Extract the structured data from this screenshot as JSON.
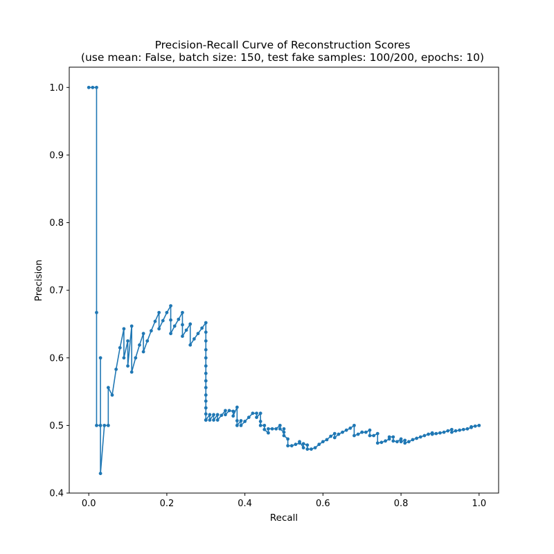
{
  "chart_data": {
    "type": "line",
    "title": "Precision-Recall Curve of Reconstruction Scores",
    "subtitle": "(use mean: False, batch size: 150, test fake samples: 100/200, epochs: 10)",
    "xlabel": "Recall",
    "ylabel": "Precision",
    "xlim": [
      -0.05,
      1.05
    ],
    "ylim": [
      0.4,
      1.03
    ],
    "xticks": [
      0.0,
      0.2,
      0.4,
      0.6,
      0.8,
      1.0
    ],
    "xtick_labels": [
      "0.0",
      "0.2",
      "0.4",
      "0.6",
      "0.8",
      "1.0"
    ],
    "yticks": [
      0.4,
      0.5,
      0.6,
      0.7,
      0.8,
      0.9,
      1.0
    ],
    "ytick_labels": [
      "0.4",
      "0.5",
      "0.6",
      "0.7",
      "0.8",
      "0.9",
      "1.0"
    ],
    "grid": false,
    "series_color": "#1f77b4",
    "marker": "circle",
    "series": [
      {
        "x": [
          0.0,
          0.01,
          0.02,
          0.02,
          0.02,
          0.03,
          0.03,
          0.03,
          0.04,
          0.05,
          0.05,
          0.06,
          0.07,
          0.08,
          0.09,
          0.09,
          0.1,
          0.1,
          0.11,
          0.11,
          0.12,
          0.13,
          0.14,
          0.14,
          0.15,
          0.16,
          0.17,
          0.18,
          0.18,
          0.19,
          0.2,
          0.21,
          0.21,
          0.21,
          0.22,
          0.23,
          0.24,
          0.24,
          0.24,
          0.25,
          0.26,
          0.26,
          0.27,
          0.28,
          0.29,
          0.3,
          0.3,
          0.3,
          0.3,
          0.3,
          0.3,
          0.3,
          0.3,
          0.3,
          0.3,
          0.3,
          0.3,
          0.3,
          0.3,
          0.3,
          0.3,
          0.31,
          0.31,
          0.32,
          0.32,
          0.33,
          0.33,
          0.34,
          0.35,
          0.35,
          0.36,
          0.37,
          0.37,
          0.38,
          0.38,
          0.38,
          0.39,
          0.39,
          0.4,
          0.41,
          0.42,
          0.43,
          0.43,
          0.44,
          0.44,
          0.44,
          0.45,
          0.45,
          0.46,
          0.46,
          0.47,
          0.48,
          0.49,
          0.49,
          0.5,
          0.5,
          0.5,
          0.51,
          0.51,
          0.52,
          0.53,
          0.54,
          0.54,
          0.55,
          0.55,
          0.56,
          0.56,
          0.57,
          0.58,
          0.59,
          0.6,
          0.61,
          0.62,
          0.63,
          0.63,
          0.64,
          0.65,
          0.66,
          0.67,
          0.68,
          0.68,
          0.69,
          0.7,
          0.7,
          0.71,
          0.72,
          0.72,
          0.73,
          0.74,
          0.74,
          0.75,
          0.76,
          0.77,
          0.77,
          0.78,
          0.78,
          0.79,
          0.8,
          0.8,
          0.81,
          0.81,
          0.82,
          0.83,
          0.84,
          0.85,
          0.86,
          0.87,
          0.88,
          0.88,
          0.89,
          0.9,
          0.91,
          0.92,
          0.93,
          0.93,
          0.94,
          0.95,
          0.96,
          0.97,
          0.98,
          0.98,
          0.99,
          1.0
        ],
        "y": [
          1.0,
          1.0,
          1.0,
          0.667,
          0.5,
          0.5,
          0.6,
          0.429,
          0.5,
          0.5,
          0.556,
          0.545,
          0.583,
          0.615,
          0.643,
          0.6,
          0.625,
          0.588,
          0.647,
          0.579,
          0.6,
          0.619,
          0.636,
          0.609,
          0.625,
          0.64,
          0.654,
          0.667,
          0.643,
          0.655,
          0.667,
          0.677,
          0.656,
          0.636,
          0.647,
          0.657,
          0.667,
          0.649,
          0.632,
          0.641,
          0.65,
          0.619,
          0.628,
          0.636,
          0.644,
          0.652,
          0.638,
          0.625,
          0.612,
          0.6,
          0.588,
          0.577,
          0.566,
          0.556,
          0.545,
          0.536,
          0.526,
          0.517,
          0.508,
          0.508,
          0.508,
          0.516,
          0.508,
          0.516,
          0.508,
          0.516,
          0.508,
          0.515,
          0.522,
          0.516,
          0.522,
          0.521,
          0.514,
          0.527,
          0.507,
          0.5,
          0.507,
          0.5,
          0.506,
          0.512,
          0.518,
          0.518,
          0.512,
          0.518,
          0.506,
          0.5,
          0.5,
          0.494,
          0.489,
          0.495,
          0.495,
          0.495,
          0.5,
          0.495,
          0.49,
          0.495,
          0.485,
          0.48,
          0.47,
          0.47,
          0.472,
          0.474,
          0.476,
          0.467,
          0.473,
          0.471,
          0.465,
          0.465,
          0.467,
          0.472,
          0.476,
          0.479,
          0.484,
          0.488,
          0.482,
          0.487,
          0.49,
          0.493,
          0.496,
          0.5,
          0.485,
          0.487,
          0.49,
          0.49,
          0.49,
          0.493,
          0.485,
          0.485,
          0.488,
          0.474,
          0.475,
          0.477,
          0.48,
          0.483,
          0.483,
          0.477,
          0.476,
          0.48,
          0.476,
          0.478,
          0.474,
          0.476,
          0.479,
          0.481,
          0.483,
          0.485,
          0.487,
          0.489,
          0.487,
          0.488,
          0.489,
          0.49,
          0.492,
          0.494,
          0.49,
          0.492,
          0.493,
          0.494,
          0.495,
          0.497,
          0.498,
          0.499,
          0.5
        ]
      }
    ]
  }
}
